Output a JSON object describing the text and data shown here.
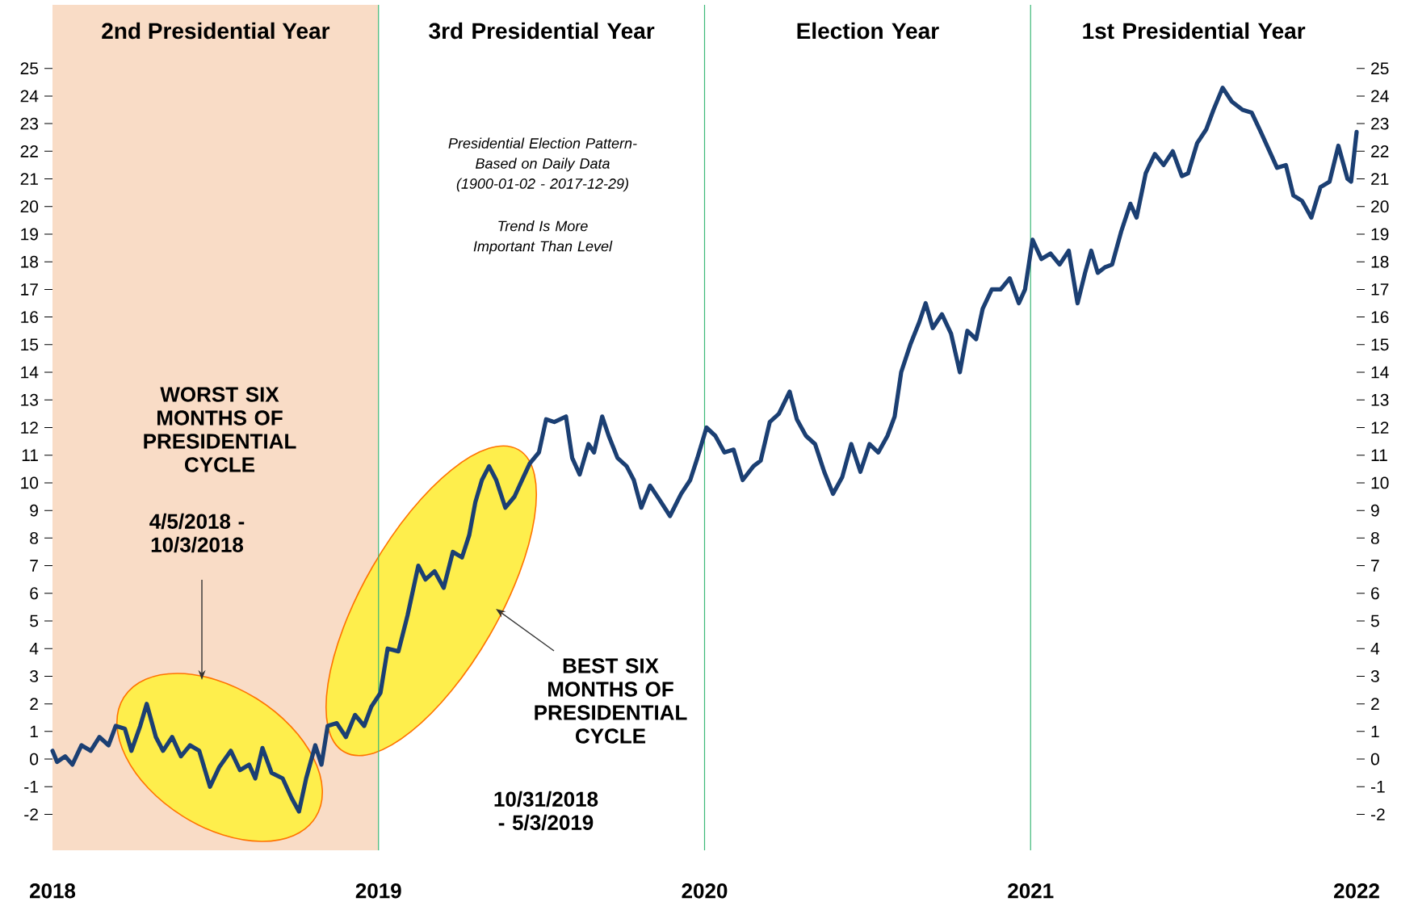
{
  "chart_data": {
    "type": "line",
    "x": [
      2018.0,
      2018.014,
      2018.039,
      2018.061,
      2018.089,
      2018.117,
      2018.144,
      2018.172,
      2018.194,
      2018.222,
      2018.242,
      2018.269,
      2018.289,
      2018.317,
      2018.339,
      2018.367,
      2018.394,
      2018.422,
      2018.45,
      2018.483,
      2018.511,
      2018.547,
      2018.575,
      2018.603,
      2018.622,
      2018.644,
      2018.672,
      2018.706,
      2018.733,
      2018.756,
      2018.778,
      2018.806,
      2018.825,
      2018.844,
      2018.872,
      2018.9,
      2018.928,
      2018.956,
      2018.978,
      2019.006,
      2019.028,
      2019.061,
      2019.089,
      2019.122,
      2019.144,
      2019.172,
      2019.2,
      2019.228,
      2019.256,
      2019.278,
      2019.297,
      2019.317,
      2019.339,
      2019.361,
      2019.389,
      2019.417,
      2019.444,
      2019.464,
      2019.492,
      2019.514,
      2019.539,
      2019.575,
      2019.594,
      2019.617,
      2019.644,
      2019.661,
      2019.686,
      2019.706,
      2019.733,
      2019.761,
      2019.783,
      2019.806,
      2019.833,
      2019.861,
      2019.894,
      2019.928,
      2019.956,
      2019.978,
      2020.006,
      2020.033,
      2020.061,
      2020.089,
      2020.117,
      2020.15,
      2020.172,
      2020.2,
      2020.228,
      2020.261,
      2020.283,
      2020.311,
      2020.339,
      2020.367,
      2020.394,
      2020.422,
      2020.45,
      2020.478,
      2020.506,
      2020.533,
      2020.561,
      2020.583,
      2020.603,
      2020.631,
      2020.658,
      2020.678,
      2020.7,
      2020.728,
      2020.756,
      2020.783,
      2020.806,
      2020.833,
      2020.853,
      2020.881,
      2020.908,
      2020.936,
      2020.964,
      2020.983,
      2021.006,
      2021.033,
      2021.061,
      2021.089,
      2021.117,
      2021.144,
      2021.167,
      2021.186,
      2021.206,
      2021.228,
      2021.25,
      2021.278,
      2021.306,
      2021.325,
      2021.353,
      2021.381,
      2021.408,
      2021.436,
      2021.464,
      2021.483,
      2021.511,
      2021.539,
      2021.561,
      2021.589,
      2021.617,
      2021.65,
      2021.678,
      2021.706,
      2021.733,
      2021.756,
      2021.783,
      2021.806,
      2021.833,
      2021.861,
      2021.889,
      2021.917,
      2021.944,
      2021.972,
      2021.983,
      2022.0
    ],
    "series": [
      {
        "color": "#1b3f73",
        "values": [
          0.3,
          -0.1,
          0.1,
          -0.2,
          0.5,
          0.3,
          0.8,
          0.5,
          1.2,
          1.1,
          0.3,
          1.2,
          2.0,
          0.8,
          0.3,
          0.8,
          0.1,
          0.5,
          0.3,
          -1.0,
          -0.3,
          0.3,
          -0.4,
          -0.2,
          -0.7,
          0.4,
          -0.5,
          -0.7,
          -1.4,
          -1.9,
          -0.7,
          0.5,
          -0.2,
          1.2,
          1.3,
          0.8,
          1.6,
          1.2,
          1.9,
          2.4,
          4.0,
          3.9,
          5.2,
          7.0,
          6.5,
          6.8,
          6.2,
          7.5,
          7.3,
          8.1,
          9.3,
          10.1,
          10.6,
          10.1,
          9.1,
          9.5,
          10.2,
          10.7,
          11.1,
          12.3,
          12.2,
          12.4,
          10.9,
          10.3,
          11.4,
          11.1,
          12.4,
          11.7,
          10.9,
          10.6,
          10.1,
          9.1,
          9.9,
          9.4,
          8.8,
          9.6,
          10.1,
          10.9,
          12.0,
          11.7,
          11.1,
          11.2,
          10.1,
          10.6,
          10.8,
          12.2,
          12.5,
          13.3,
          12.3,
          11.7,
          11.4,
          10.4,
          9.6,
          10.2,
          11.4,
          10.4,
          11.4,
          11.1,
          11.7,
          12.4,
          14.0,
          15.0,
          15.8,
          16.5,
          15.6,
          16.1,
          15.4,
          14.0,
          15.5,
          15.2,
          16.3,
          17.0,
          17.0,
          17.4,
          16.5,
          17.0,
          18.8,
          18.1,
          18.3,
          17.9,
          18.4,
          16.5,
          17.6,
          18.4,
          17.6,
          17.8,
          17.9,
          19.1,
          20.1,
          19.6,
          21.2,
          21.9,
          21.5,
          22.0,
          21.1,
          21.2,
          22.3,
          22.8,
          23.5,
          24.3,
          23.8,
          23.5,
          23.4,
          22.7,
          22.0,
          21.4,
          21.5,
          20.4,
          20.2,
          19.6,
          20.7,
          20.9,
          22.2,
          21.0,
          20.9,
          22.7
        ]
      }
    ],
    "xlim": [
      2018,
      2022
    ],
    "xticks": [
      2018,
      2019,
      2020,
      2021,
      2022
    ],
    "ylim": [
      -3.3,
      27.3
    ],
    "yticks": [
      -2,
      -1,
      0,
      1,
      2,
      3,
      4,
      5,
      6,
      7,
      8,
      9,
      10,
      11,
      12,
      13,
      14,
      15,
      16,
      17,
      18,
      19,
      20,
      21,
      22,
      23,
      24,
      25
    ],
    "y2lim": [
      -3.3,
      27.3
    ],
    "y2ticks": [
      -2,
      -1,
      0,
      1,
      2,
      3,
      4,
      5,
      6,
      7,
      8,
      9,
      10,
      11,
      12,
      13,
      14,
      15,
      16,
      17,
      18,
      19,
      20,
      21,
      22,
      23,
      24,
      25
    ],
    "ref_lines": [
      {
        "axis": "x",
        "value": 2019,
        "color": "#3cb878"
      },
      {
        "axis": "x",
        "value": 2020,
        "color": "#3cb878"
      },
      {
        "axis": "x",
        "value": 2021,
        "color": "#3cb878"
      }
    ],
    "bands": [
      {
        "axis": "x",
        "from": 2018,
        "to": 2019,
        "label": "2nd Presidential Year",
        "color": "#f9dcc6"
      }
    ],
    "annotations": [
      "3rd Presidential Year",
      "Election Year",
      "1st Presidential Year",
      "WORST SIX MONTHS OF PRESIDENTIAL CYCLE",
      "4/5/2018 - 10/3/2018",
      "Presidential Election Pattern- Based on Daily Data (1900-01-02 - 2017-12-29)",
      "Trend Is More Important Than Level",
      "BEST SIX MONTHS OF PRESIDENTIAL CYCLE",
      "10/31/2018 - 5/3/2019"
    ],
    "grid": false,
    "marker": "none",
    "line_style": "solid"
  }
}
